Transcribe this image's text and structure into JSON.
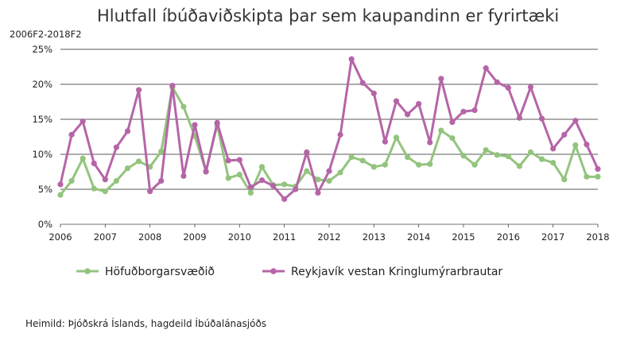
{
  "chart_data": {
    "type": "line",
    "title": "Hlutfall íbúðaviðskipta þar sem kaupandinn er fyrirtæki",
    "subtitle": "2006F2-2018F2",
    "source": "Heimild: Þjóðskrá Íslands, hagdeild Íbúðalánasjóðs",
    "ylim": [
      0,
      25
    ],
    "yticks": [
      "0%",
      "5%",
      "10%",
      "15%",
      "20%",
      "25%"
    ],
    "ytick_values": [
      0,
      5,
      10,
      15,
      20,
      25
    ],
    "xticks": [
      "2006",
      "2007",
      "2008",
      "2009",
      "2010",
      "2011",
      "2012",
      "2013",
      "2014",
      "2015",
      "2016",
      "2017",
      "2018"
    ],
    "grid": true,
    "legend_position": "bottom",
    "series": [
      {
        "name": "Höfuðborgarsvæðið",
        "color": "#93c47d",
        "values": [
          4.2,
          6.2,
          9.4,
          5.1,
          4.7,
          6.2,
          8.0,
          9.0,
          8.2,
          10.4,
          19.6,
          16.8,
          12.6,
          7.6,
          14.2,
          6.6,
          7.1,
          4.5,
          8.2,
          5.6,
          5.7,
          5.4,
          7.6,
          6.4,
          6.2,
          7.4,
          9.6,
          9.1,
          8.2,
          8.5,
          12.4,
          9.6,
          8.5,
          8.6,
          13.4,
          12.3,
          9.8,
          8.5,
          10.6,
          9.9,
          9.7,
          8.3,
          10.3,
          9.3,
          8.8,
          6.4,
          11.3,
          6.8,
          6.8
        ]
      },
      {
        "name": "Reykjavík vestan Kringlumýrarbrautar",
        "color": "#b565a7",
        "values": [
          5.7,
          12.8,
          14.7,
          8.7,
          6.4,
          11.0,
          13.3,
          19.2,
          4.7,
          6.2,
          19.8,
          6.9,
          14.2,
          7.5,
          14.5,
          9.1,
          9.2,
          5.3,
          6.3,
          5.5,
          3.6,
          5.0,
          10.3,
          4.5,
          7.6,
          12.8,
          23.6,
          20.2,
          18.7,
          11.8,
          17.6,
          15.7,
          17.2,
          11.7,
          20.8,
          14.6,
          16.1,
          16.3,
          22.3,
          20.3,
          19.5,
          15.2,
          19.6,
          15.1,
          10.8,
          12.8,
          14.8,
          11.4,
          7.9
        ]
      }
    ]
  }
}
